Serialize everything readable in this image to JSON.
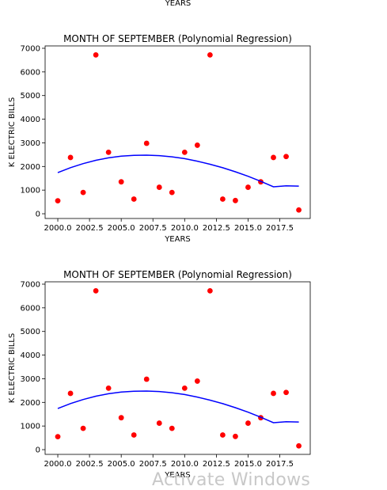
{
  "top_label": "YEARS",
  "watermark": "Activate Windows",
  "chart_data": [
    {
      "type": "scatter",
      "title": "MONTH OF SEPTEMBER (Polynomial Regression)",
      "xlabel": "YEARS",
      "ylabel": "K ELECTRIC BILLS",
      "xlim": [
        1999.0,
        2019.9
      ],
      "ylim": [
        -200,
        7100
      ],
      "xticks": [
        2000.0,
        2002.5,
        2005.0,
        2007.5,
        2010.0,
        2012.5,
        2015.0,
        2017.5
      ],
      "xtick_labels": [
        "2000.0",
        "2002.5",
        "2005.0",
        "2007.5",
        "2010.0",
        "2012.5",
        "2015.0",
        "2017.5"
      ],
      "yticks": [
        0,
        1000,
        2000,
        3000,
        4000,
        5000,
        6000,
        7000
      ],
      "ytick_labels": [
        "0",
        "1000",
        "2000",
        "3000",
        "4000",
        "5000",
        "6000",
        "7000"
      ],
      "grid": false,
      "series": [
        {
          "kind": "scatter",
          "color": "#ff0000",
          "x": [
            2000,
            2001,
            2002,
            2003,
            2004,
            2005,
            2006,
            2007,
            2008,
            2009,
            2010,
            2011,
            2012,
            2013,
            2014,
            2015,
            2016,
            2017,
            2018,
            2019
          ],
          "y": [
            550,
            2380,
            900,
            6720,
            2600,
            1350,
            620,
            2980,
            1120,
            900,
            2600,
            2900,
            6720,
            620,
            560,
            1120,
            1350,
            2380,
            2420,
            160
          ]
        },
        {
          "kind": "line",
          "color": "#0000ff",
          "x": [
            2000,
            2001,
            2002,
            2003,
            2004,
            2005,
            2006,
            2007,
            2008,
            2009,
            2010,
            2011,
            2012,
            2013,
            2014,
            2015,
            2016,
            2017,
            2018,
            2019
          ],
          "y": [
            1740,
            1950,
            2120,
            2260,
            2365,
            2435,
            2470,
            2480,
            2460,
            2410,
            2330,
            2225,
            2095,
            1945,
            1775,
            1585,
            1370,
            1140,
            1180,
            1170
          ]
        }
      ]
    },
    {
      "type": "scatter",
      "title": "MONTH OF SEPTEMBER (Polynomial Regression)",
      "xlabel": "YEARS",
      "ylabel": "K ELECTRIC BILLS",
      "xlim": [
        1999.0,
        2019.9
      ],
      "ylim": [
        -200,
        7100
      ],
      "xticks": [
        2000.0,
        2002.5,
        2005.0,
        2007.5,
        2010.0,
        2012.5,
        2015.0,
        2017.5
      ],
      "xtick_labels": [
        "2000.0",
        "2002.5",
        "2005.0",
        "2007.5",
        "2010.0",
        "2012.5",
        "2015.0",
        "2017.5"
      ],
      "yticks": [
        0,
        1000,
        2000,
        3000,
        4000,
        5000,
        6000,
        7000
      ],
      "ytick_labels": [
        "0",
        "1000",
        "2000",
        "3000",
        "4000",
        "5000",
        "6000",
        "7000"
      ],
      "grid": false,
      "series": [
        {
          "kind": "scatter",
          "color": "#ff0000",
          "x": [
            2000,
            2001,
            2002,
            2003,
            2004,
            2005,
            2006,
            2007,
            2008,
            2009,
            2010,
            2011,
            2012,
            2013,
            2014,
            2015,
            2016,
            2017,
            2018,
            2019
          ],
          "y": [
            550,
            2380,
            900,
            6720,
            2600,
            1350,
            620,
            2980,
            1120,
            900,
            2600,
            2900,
            6720,
            620,
            560,
            1120,
            1350,
            2380,
            2420,
            160
          ]
        },
        {
          "kind": "line",
          "color": "#0000ff",
          "x": [
            2000,
            2001,
            2002,
            2003,
            2004,
            2005,
            2006,
            2007,
            2008,
            2009,
            2010,
            2011,
            2012,
            2013,
            2014,
            2015,
            2016,
            2017,
            2018,
            2019
          ],
          "y": [
            1740,
            1950,
            2120,
            2260,
            2365,
            2435,
            2470,
            2480,
            2460,
            2410,
            2330,
            2225,
            2095,
            1945,
            1775,
            1585,
            1370,
            1140,
            1180,
            1170
          ]
        }
      ]
    }
  ]
}
